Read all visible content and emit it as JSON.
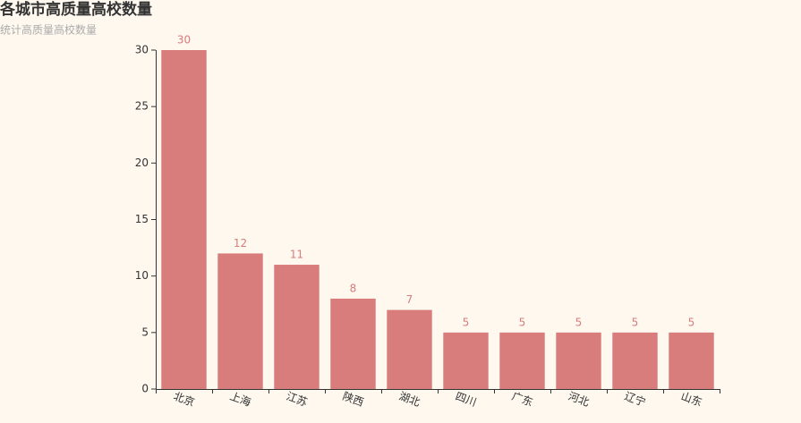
{
  "chart_data": {
    "type": "bar",
    "title": "各城市高质量高校数量",
    "subtitle": "统计高质量高校数量",
    "categories": [
      "北京",
      "上海",
      "江苏",
      "陕西",
      "湖北",
      "四川",
      "广东",
      "河北",
      "辽宁",
      "山东"
    ],
    "values": [
      30,
      12,
      11,
      8,
      7,
      5,
      5,
      5,
      5,
      5
    ],
    "color": "#d87c7c",
    "ylim": [
      0,
      30
    ],
    "yticks": [
      0,
      5,
      10,
      15,
      20,
      25,
      30
    ],
    "grid": false
  }
}
